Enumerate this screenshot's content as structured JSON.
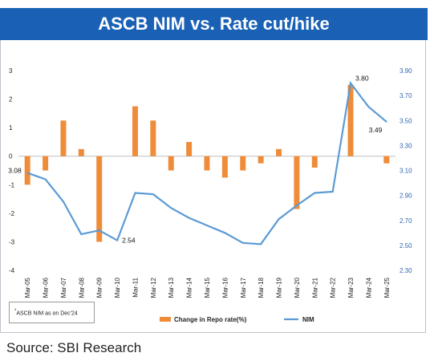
{
  "title": "ASCB NIM vs. Rate cut/hike",
  "source": "Source: SBI Research",
  "footnote": {
    "marker": "*",
    "text": "ASCB NIM as on Dec'24"
  },
  "colors": {
    "title_bg": "#1a61b6",
    "bar": "#ef8c3a",
    "line": "#5b9bd5",
    "right_axis": "#2f66b3"
  },
  "chart_data": {
    "type": "bar+line",
    "categories": [
      "Mar-05",
      "Mar-06",
      "Mar-07",
      "Mar-08",
      "Mar-09",
      "Mar-10",
      "Mar-11",
      "Mar-12",
      "Mar-13",
      "Mar-14",
      "Mar-15",
      "Mar-16",
      "Mar-17",
      "Mar-18",
      "Mar-19",
      "Mar-20",
      "Mar-21",
      "Mar-22",
      "Mar-23",
      "Mar-24",
      "Mar-25"
    ],
    "series": [
      {
        "name": "Change in Repo rate(%)",
        "type": "bar",
        "axis": "left",
        "values": [
          -1.0,
          -0.5,
          1.25,
          0.25,
          -3.0,
          0.0,
          1.75,
          1.25,
          -0.5,
          0.5,
          -0.5,
          -0.75,
          -0.5,
          -0.25,
          0.25,
          -1.85,
          -0.4,
          0.0,
          2.5,
          0.0,
          -0.25
        ]
      },
      {
        "name": "NIM",
        "type": "line",
        "axis": "right",
        "values": [
          3.08,
          3.03,
          2.85,
          2.59,
          2.62,
          2.54,
          2.92,
          2.91,
          2.8,
          2.72,
          2.66,
          2.6,
          2.52,
          2.51,
          2.71,
          2.82,
          2.92,
          2.93,
          3.8,
          3.61,
          3.49
        ]
      }
    ],
    "y_left": {
      "min": -4,
      "max": 3,
      "ticks": [
        "3",
        "2",
        "1",
        "0",
        "-1",
        "-2",
        "-3",
        "-4"
      ]
    },
    "y_right": {
      "min": 2.3,
      "max": 3.9,
      "ticks": [
        "3.90",
        "3.70",
        "3.50",
        "3.30",
        "3.10",
        "2.90",
        "2.70",
        "2.50",
        "2.30"
      ]
    },
    "data_labels": [
      {
        "series": "NIM",
        "index": 0,
        "text": "3.08"
      },
      {
        "series": "NIM",
        "index": 5,
        "text": "2.54"
      },
      {
        "series": "NIM",
        "index": 18,
        "text": "3.80"
      },
      {
        "series": "NIM",
        "index": 20,
        "text": "3.49"
      }
    ],
    "legend": {
      "placement": "bottom",
      "entries": [
        "Change in Repo rate(%)",
        "NIM"
      ]
    },
    "grid": false
  }
}
